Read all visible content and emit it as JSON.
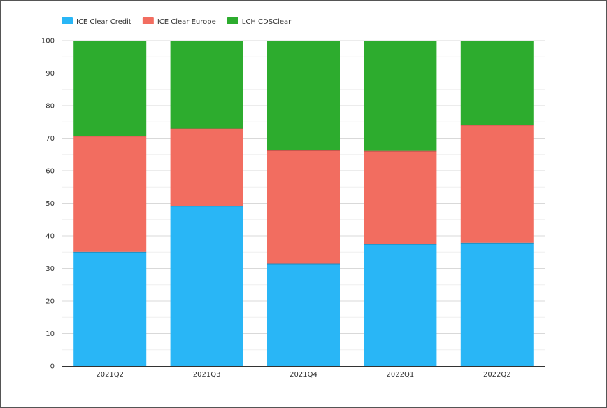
{
  "chart_data": {
    "type": "bar",
    "stacked": true,
    "categories": [
      "2021Q2",
      "2021Q3",
      "2021Q4",
      "2022Q1",
      "2022Q2"
    ],
    "series": [
      {
        "name": "ICE Clear Credit",
        "color": "#29b6f6",
        "values": [
          35.1,
          49.2,
          31.5,
          37.5,
          37.9
        ]
      },
      {
        "name": "ICE Clear Europe",
        "color": "#f26d60",
        "values": [
          35.6,
          23.8,
          34.8,
          28.6,
          36.2
        ]
      },
      {
        "name": "LCH CDSClear",
        "color": "#2dac2e",
        "values": [
          29.3,
          27.0,
          33.7,
          33.9,
          25.9
        ]
      }
    ],
    "ylim": [
      0,
      100
    ],
    "yticks": [
      "0",
      "10",
      "20",
      "30",
      "40",
      "50",
      "60",
      "70",
      "80",
      "90",
      "100"
    ],
    "grid": true,
    "legend_position": "top-left",
    "title": "",
    "xlabel": "",
    "ylabel": ""
  }
}
